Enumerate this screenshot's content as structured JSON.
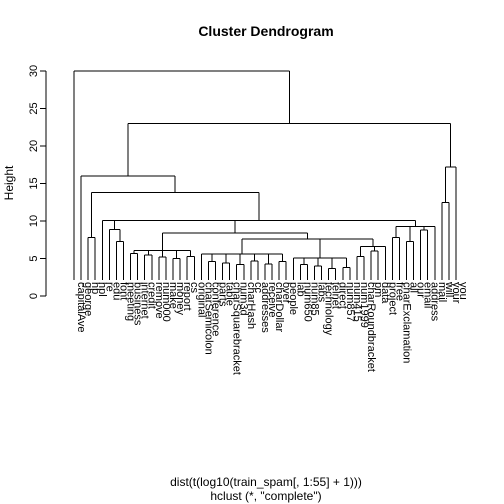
{
  "chart_data": {
    "type": "dendrogram",
    "title": "Cluster Dendrogram",
    "ylabel": "Height",
    "xlabel": "dist(t(log10(train_spam[, 1:55] + 1)))",
    "sublabel": "hclust (*, \"complete\")",
    "ylim": [
      0,
      30
    ],
    "yticks": [
      0,
      5,
      10,
      15,
      20,
      25,
      30
    ],
    "leaves": [
      "capitalAve",
      "george",
      "hp",
      "hpl",
      "re",
      "edu",
      "font",
      "meeting",
      "business",
      "internet",
      "credit",
      "remove",
      "num000",
      "make",
      "money",
      "report",
      "cs",
      "original",
      "charSemicolon",
      "conference",
      "parts",
      "table",
      "charSquarebracket",
      "num3d",
      "charHash",
      "cc",
      "addresses",
      "receive",
      "charDollar",
      "over",
      "people",
      "lab",
      "num650",
      "num85",
      "labs",
      "technology",
      "telnet",
      "direct",
      "num857",
      "num415",
      "num1999",
      "charRoundbracket",
      "pm",
      "data",
      "project",
      "free",
      "charExclamation",
      "all",
      "our",
      "email",
      "address",
      "mail",
      "will",
      "your",
      "you"
    ],
    "merges": [
      {
        "left": 2,
        "right": 3,
        "height": 7.8
      },
      {
        "left": 6,
        "right": 7,
        "height": 7.3
      },
      {
        "left": 8,
        "right": 9,
        "height": 5.7
      },
      {
        "left": 10,
        "right": 11,
        "height": 5.5
      },
      {
        "left": 12,
        "right": 13,
        "height": 5.2
      },
      {
        "left": 14,
        "right": 15,
        "height": 5.0
      },
      {
        "left": 16,
        "right": 17,
        "height": 5.3
      },
      {
        "left": 19,
        "right": 20,
        "height": 4.6
      },
      {
        "left": 21,
        "right": 22,
        "height": 4.4
      },
      {
        "left": 23,
        "right": 24,
        "height": 4.2
      },
      {
        "left": 25,
        "right": 26,
        "height": 4.7
      },
      {
        "left": 27,
        "right": 28,
        "height": 4.3
      },
      {
        "left": 29,
        "right": 30,
        "height": 4.6
      },
      {
        "left": 32,
        "right": 33,
        "height": 4.2
      },
      {
        "left": 34,
        "right": 35,
        "height": 4.0
      },
      {
        "left": 36,
        "right": 37,
        "height": 3.7
      },
      {
        "left": 38,
        "right": 39,
        "height": 3.8
      },
      {
        "left": 40,
        "right": 41,
        "height": 5.3
      },
      {
        "left": 42,
        "right": 43,
        "height": 6.0
      },
      {
        "left": 45,
        "right": 46,
        "height": 7.8
      },
      {
        "left": 47,
        "right": 48,
        "height": 7.3
      },
      {
        "left": 49,
        "right": 50,
        "height": 8.8
      },
      {
        "left": 52,
        "right": 53,
        "height": 12.5
      }
    ],
    "clusters": [
      {
        "from": 5,
        "to": 7,
        "height": 8.9
      },
      {
        "from": 8,
        "to": 17,
        "height": 6.1
      },
      {
        "from": 18,
        "to": 30,
        "height": 5.6
      },
      {
        "from": 31,
        "to": 39,
        "height": 5.1
      },
      {
        "from": 40,
        "to": 44,
        "height": 6.6
      },
      {
        "from": 45,
        "to": 51,
        "height": 9.3
      },
      {
        "from": 18,
        "to": 44,
        "height": 7.6
      },
      {
        "from": 8,
        "to": 44,
        "height": 8.4
      },
      {
        "from": 4,
        "to": 51,
        "height": 10.1
      },
      {
        "from": 2,
        "to": 51,
        "height": 13.8
      },
      {
        "from": 1,
        "to": 51,
        "height": 16.0
      },
      {
        "from": 52,
        "to": 54,
        "height": 17.2
      },
      {
        "from": 1,
        "to": 54,
        "height": 23.0
      },
      {
        "from": 0,
        "to": 54,
        "height": 30.0
      }
    ]
  }
}
